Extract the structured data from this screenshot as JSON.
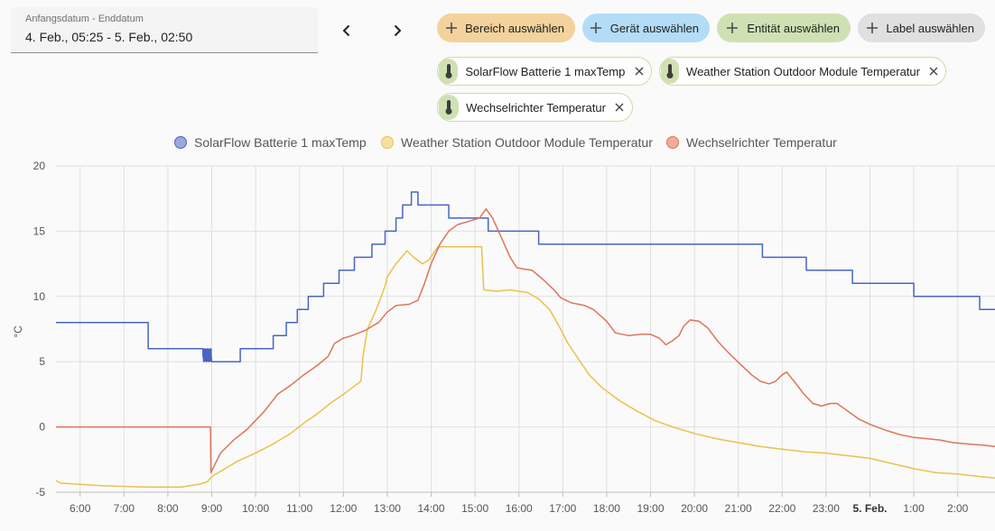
{
  "date_range": {
    "label": "Anfangsdatum - Enddatum",
    "value": "4. Feb., 05:25 - 5. Feb., 02:50"
  },
  "nav": {
    "prev_icon": "chevron-left-icon",
    "next_icon": "chevron-right-icon"
  },
  "pickers": [
    {
      "label": "Bereich auswählen",
      "color": "#f3d29c"
    },
    {
      "label": "Gerät auswählen",
      "color": "#b3dcf7"
    },
    {
      "label": "Entität auswählen",
      "color": "#cfe1b3"
    },
    {
      "label": "Label auswählen",
      "color": "#e0e0e0"
    }
  ],
  "entities": [
    {
      "label": "SolarFlow Batterie 1 maxTemp",
      "icon": "thermometer-icon"
    },
    {
      "label": "Weather Station Outdoor Module Temperatur",
      "icon": "thermometer-icon"
    },
    {
      "label": "Wechselrichter Temperatur",
      "icon": "thermometer-icon"
    }
  ],
  "chart_data": {
    "type": "line",
    "ylabel": "°C",
    "ylim": [
      -5,
      20
    ],
    "yticks": [
      "-5",
      "0",
      "5",
      "10",
      "15",
      "20"
    ],
    "x_domain_hours": [
      5.45,
      26.85
    ],
    "xticks": [
      {
        "h": 6,
        "label": "6:00"
      },
      {
        "h": 7,
        "label": "7:00"
      },
      {
        "h": 8,
        "label": "8:00"
      },
      {
        "h": 9,
        "label": "9:00"
      },
      {
        "h": 10,
        "label": "10:00"
      },
      {
        "h": 11,
        "label": "11:00"
      },
      {
        "h": 12,
        "label": "12:00"
      },
      {
        "h": 13,
        "label": "13:00"
      },
      {
        "h": 14,
        "label": "14:00"
      },
      {
        "h": 15,
        "label": "15:00"
      },
      {
        "h": 16,
        "label": "16:00"
      },
      {
        "h": 17,
        "label": "17:00"
      },
      {
        "h": 18,
        "label": "18:00"
      },
      {
        "h": 19,
        "label": "19:00"
      },
      {
        "h": 20,
        "label": "20:00"
      },
      {
        "h": 21,
        "label": "21:00"
      },
      {
        "h": 22,
        "label": "22:00"
      },
      {
        "h": 23,
        "label": "23:00"
      },
      {
        "h": 24,
        "label": "5. Feb.",
        "bold": true
      },
      {
        "h": 25,
        "label": "1:00"
      },
      {
        "h": 26,
        "label": "2:00"
      }
    ],
    "grid": true,
    "legend_position": "top",
    "series": [
      {
        "name": "SolarFlow Batterie 1 maxTemp",
        "color": "#4964c4",
        "fill": "#9aa8dc",
        "step": true,
        "points": [
          [
            5.45,
            8
          ],
          [
            7.55,
            8
          ],
          [
            7.55,
            6
          ],
          [
            8.8,
            6
          ],
          [
            8.8,
            5.5
          ],
          [
            8.82,
            5
          ],
          [
            8.85,
            6
          ],
          [
            8.88,
            5
          ],
          [
            8.91,
            6
          ],
          [
            8.94,
            5
          ],
          [
            8.97,
            6
          ],
          [
            9,
            5
          ],
          [
            9.05,
            5
          ],
          [
            9.65,
            5
          ],
          [
            9.65,
            6
          ],
          [
            10.4,
            6
          ],
          [
            10.4,
            7
          ],
          [
            10.7,
            7
          ],
          [
            10.7,
            8
          ],
          [
            10.95,
            8
          ],
          [
            10.95,
            9
          ],
          [
            11.2,
            9
          ],
          [
            11.2,
            10
          ],
          [
            11.55,
            10
          ],
          [
            11.55,
            11
          ],
          [
            11.9,
            11
          ],
          [
            11.9,
            12
          ],
          [
            12.25,
            12
          ],
          [
            12.25,
            13
          ],
          [
            12.65,
            13
          ],
          [
            12.65,
            14
          ],
          [
            12.95,
            14
          ],
          [
            12.95,
            15
          ],
          [
            13.2,
            15
          ],
          [
            13.2,
            16
          ],
          [
            13.35,
            16
          ],
          [
            13.35,
            17
          ],
          [
            13.55,
            17
          ],
          [
            13.55,
            18
          ],
          [
            13.7,
            18
          ],
          [
            13.7,
            17
          ],
          [
            14.4,
            17
          ],
          [
            14.4,
            16
          ],
          [
            15.3,
            16
          ],
          [
            15.3,
            15
          ],
          [
            16.45,
            15
          ],
          [
            16.45,
            14
          ],
          [
            21.55,
            14
          ],
          [
            21.55,
            13
          ],
          [
            22.55,
            13
          ],
          [
            22.55,
            12
          ],
          [
            23.6,
            12
          ],
          [
            23.6,
            11
          ],
          [
            25,
            11
          ],
          [
            25,
            10
          ],
          [
            26.5,
            10
          ],
          [
            26.5,
            9
          ],
          [
            26.85,
            9
          ]
        ]
      },
      {
        "name": "Weather Station Outdoor Module Temperatur",
        "color": "#e9c24d",
        "step": true,
        "points": [
          [
            5.45,
            -4.1
          ],
          [
            5.55,
            -4.3
          ],
          [
            6.0,
            -4.4
          ],
          [
            6.5,
            -4.5
          ],
          [
            7.5,
            -4.6
          ],
          [
            8.3,
            -4.6
          ],
          [
            8.7,
            -4.4
          ],
          [
            8.9,
            -4.2
          ],
          [
            9.0,
            -3.8
          ],
          [
            9.3,
            -3.2
          ],
          [
            9.6,
            -2.6
          ],
          [
            10.0,
            -2.0
          ],
          [
            10.4,
            -1.3
          ],
          [
            10.8,
            -0.5
          ],
          [
            11.1,
            0.3
          ],
          [
            11.4,
            1.0
          ],
          [
            11.7,
            1.8
          ],
          [
            12.0,
            2.5
          ],
          [
            12.2,
            3.0
          ],
          [
            12.4,
            3.5
          ],
          [
            12.45,
            5.5
          ],
          [
            12.55,
            7.5
          ],
          [
            12.75,
            9
          ],
          [
            12.95,
            10.8
          ],
          [
            13.0,
            11.5
          ],
          [
            13.2,
            12.5
          ],
          [
            13.45,
            13.5
          ],
          [
            13.6,
            13.0
          ],
          [
            13.8,
            12.5
          ],
          [
            13.95,
            12.8
          ],
          [
            14.15,
            13.8
          ],
          [
            14.5,
            13.8
          ],
          [
            15.0,
            13.8
          ],
          [
            15.15,
            13.8
          ],
          [
            15.2,
            10.5
          ],
          [
            15.5,
            10.4
          ],
          [
            15.8,
            10.5
          ],
          [
            16.2,
            10.3
          ],
          [
            16.45,
            9.8
          ],
          [
            16.7,
            9.0
          ],
          [
            16.95,
            7.5
          ],
          [
            17.1,
            6.5
          ],
          [
            17.4,
            5.0
          ],
          [
            17.6,
            4.0
          ],
          [
            17.9,
            3.0
          ],
          [
            18.3,
            2.0
          ],
          [
            18.7,
            1.2
          ],
          [
            19.1,
            0.5
          ],
          [
            19.5,
            0.0
          ],
          [
            20.0,
            -0.5
          ],
          [
            20.5,
            -0.9
          ],
          [
            21.0,
            -1.2
          ],
          [
            21.5,
            -1.5
          ],
          [
            22.0,
            -1.7
          ],
          [
            22.5,
            -1.9
          ],
          [
            23.0,
            -2.0
          ],
          [
            23.5,
            -2.2
          ],
          [
            24.0,
            -2.4
          ],
          [
            24.5,
            -2.8
          ],
          [
            25.0,
            -3.2
          ],
          [
            25.5,
            -3.5
          ],
          [
            26.0,
            -3.6
          ],
          [
            26.5,
            -3.8
          ],
          [
            26.85,
            -3.9
          ]
        ]
      },
      {
        "name": "Wechselrichter Temperatur",
        "color": "#e0735b",
        "step": false,
        "points": [
          [
            5.45,
            0
          ],
          [
            8.97,
            0
          ],
          [
            8.98,
            -3.5
          ],
          [
            9.2,
            -2.0
          ],
          [
            9.5,
            -1.0
          ],
          [
            9.8,
            -0.2
          ],
          [
            10.2,
            1.2
          ],
          [
            10.5,
            2.5
          ],
          [
            10.8,
            3.2
          ],
          [
            11.1,
            4.0
          ],
          [
            11.4,
            4.7
          ],
          [
            11.65,
            5.4
          ],
          [
            11.8,
            6.4
          ],
          [
            12.0,
            6.8
          ],
          [
            12.2,
            7.0
          ],
          [
            12.5,
            7.4
          ],
          [
            12.8,
            8.0
          ],
          [
            13.0,
            8.8
          ],
          [
            13.2,
            9.3
          ],
          [
            13.5,
            9.4
          ],
          [
            13.7,
            9.7
          ],
          [
            13.85,
            11.0
          ],
          [
            14.0,
            12.5
          ],
          [
            14.2,
            14.0
          ],
          [
            14.4,
            15.0
          ],
          [
            14.6,
            15.5
          ],
          [
            14.9,
            15.8
          ],
          [
            15.1,
            16.0
          ],
          [
            15.25,
            16.7
          ],
          [
            15.4,
            16.0
          ],
          [
            15.6,
            14.5
          ],
          [
            15.8,
            13.0
          ],
          [
            15.95,
            12.2
          ],
          [
            16.1,
            12.1
          ],
          [
            16.3,
            12.0
          ],
          [
            16.55,
            11.3
          ],
          [
            16.8,
            10.5
          ],
          [
            16.95,
            9.9
          ],
          [
            17.2,
            9.5
          ],
          [
            17.5,
            9.3
          ],
          [
            17.7,
            9.0
          ],
          [
            18.0,
            8.1
          ],
          [
            18.2,
            7.2
          ],
          [
            18.5,
            7.0
          ],
          [
            18.8,
            7.1
          ],
          [
            19.0,
            7.1
          ],
          [
            19.2,
            6.8
          ],
          [
            19.35,
            6.3
          ],
          [
            19.5,
            6.6
          ],
          [
            19.65,
            7.0
          ],
          [
            19.75,
            7.7
          ],
          [
            19.9,
            8.2
          ],
          [
            20.1,
            8.1
          ],
          [
            20.3,
            7.6
          ],
          [
            20.55,
            6.5
          ],
          [
            20.8,
            5.6
          ],
          [
            21.05,
            4.8
          ],
          [
            21.3,
            4.0
          ],
          [
            21.5,
            3.5
          ],
          [
            21.7,
            3.3
          ],
          [
            21.85,
            3.5
          ],
          [
            22.0,
            4.0
          ],
          [
            22.1,
            4.2
          ],
          [
            22.25,
            3.6
          ],
          [
            22.5,
            2.5
          ],
          [
            22.7,
            1.8
          ],
          [
            22.9,
            1.6
          ],
          [
            23.1,
            1.8
          ],
          [
            23.25,
            1.8
          ],
          [
            23.5,
            1.2
          ],
          [
            23.75,
            0.6
          ],
          [
            24.0,
            0.2
          ],
          [
            24.4,
            -0.3
          ],
          [
            24.7,
            -0.6
          ],
          [
            25.0,
            -0.8
          ],
          [
            25.3,
            -0.9
          ],
          [
            25.6,
            -1.0
          ],
          [
            25.9,
            -1.2
          ],
          [
            26.2,
            -1.3
          ],
          [
            26.6,
            -1.4
          ],
          [
            26.85,
            -1.5
          ]
        ]
      }
    ]
  }
}
